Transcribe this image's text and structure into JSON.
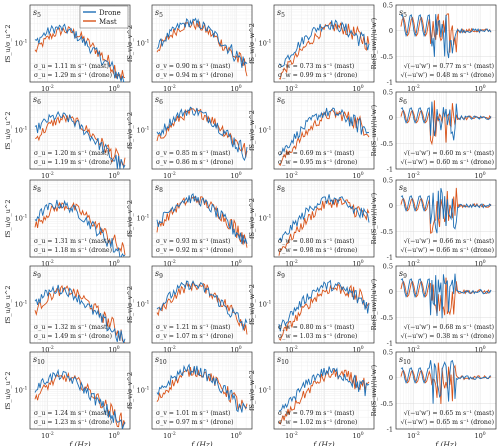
{
  "chart_data": {
    "type": "line",
    "legend": {
      "entries": [
        "Drone",
        "Mast"
      ],
      "placement": "top-right of first panel"
    },
    "colors": {
      "drone": "#1f6fb5",
      "mast": "#d9541a"
    },
    "grid": true,
    "x_axis": {
      "label": "f (Hz)",
      "scale": "log",
      "range": [
        0.003,
        3
      ],
      "tick_labels": [
        "10^{-2}",
        "10^{0}"
      ]
    },
    "column_ylabels": [
      "fS_u/σ_u^2",
      "fS_v/σ_v^2",
      "fS_w/σ_w^2",
      "Re(S_uw)/⟨u'w'⟩"
    ],
    "y_axis_log": {
      "scale": "log",
      "range": [
        0.01,
        0.9
      ],
      "tick_labels": [
        "10^{-1}"
      ]
    },
    "y_axis_cospectrum": {
      "scale": "linear",
      "range": [
        -1.0,
        0.5
      ],
      "tick_labels": [
        "-1",
        "-0.5",
        "0",
        "0.5"
      ]
    },
    "annotation_units": "m s^{-1}",
    "row_subscripts": [
      "5",
      "6",
      "8",
      "9",
      "10"
    ],
    "panels": [
      [
        {
          "col": 0,
          "label": "s5",
          "lines": [
            "σ_u = 1.11 m s⁻¹ (mast)",
            "σ_u = 1.29 m s⁻¹ (drone)"
          ],
          "drone_peak_x": 0.02,
          "drone_peak_y": 0.32,
          "mast_peak_x": 0.03,
          "mast_peak_y": 0.28
        },
        {
          "col": 1,
          "label": "s5",
          "lines": [
            "σ_v = 0.90 m s⁻¹ (mast)",
            "σ_v = 0.94 m s⁻¹ (drone)"
          ],
          "drone_peak_x": 0.04,
          "drone_peak_y": 0.45,
          "mast_peak_x": 0.04,
          "mast_peak_y": 0.4
        },
        {
          "col": 2,
          "label": "s5",
          "lines": [
            "σ_w = 0.73 m s⁻¹ (mast)",
            "σ_w = 0.99 m s⁻¹ (drone)"
          ],
          "drone_peak_x": 0.1,
          "drone_peak_y": 0.35,
          "mast_peak_x": 0.15,
          "mast_peak_y": 0.3
        },
        {
          "col": 3,
          "label": "s5",
          "lines": [
            "√(−u'w') = 0.77 m s⁻¹ (mast)",
            "√(−u'w') = 0.48 m s⁻¹ (drone)"
          ],
          "drone_peak_x": 0.01,
          "drone_peak_y": 0.35,
          "mast_peak_x": 0.02,
          "mast_peak_y": 0.3
        }
      ],
      [
        {
          "col": 0,
          "label": "s6",
          "lines": [
            "σ_u = 1.20 m s⁻¹ (mast)",
            "σ_u = 1.19 m s⁻¹ (drone)"
          ],
          "drone_peak_x": 0.02,
          "drone_peak_y": 0.3,
          "mast_peak_x": 0.03,
          "mast_peak_y": 0.26
        },
        {
          "col": 1,
          "label": "s6",
          "lines": [
            "σ_v = 0.85 m s⁻¹ (mast)",
            "σ_v = 0.86 m s⁻¹ (drone)"
          ],
          "drone_peak_x": 0.04,
          "drone_peak_y": 0.42,
          "mast_peak_x": 0.05,
          "mast_peak_y": 0.38
        },
        {
          "col": 2,
          "label": "s6",
          "lines": [
            "σ_w = 0.69 m s⁻¹ (mast)",
            "σ_w = 0.95 m s⁻¹ (drone)"
          ],
          "drone_peak_x": 0.1,
          "drone_peak_y": 0.33,
          "mast_peak_x": 0.15,
          "mast_peak_y": 0.3
        },
        {
          "col": 3,
          "label": "s6",
          "lines": [
            "√(−u'w') = 0.60 m s⁻¹ (mast)",
            "√(−u'w') = 0.60 m s⁻¹ (drone)"
          ],
          "drone_peak_x": 0.01,
          "drone_peak_y": 0.25,
          "mast_peak_x": 0.02,
          "mast_peak_y": 0.2
        }
      ],
      [
        {
          "col": 0,
          "label": "s8",
          "lines": [
            "σ_u = 1.31 m s⁻¹ (mast)",
            "σ_u = 1.18 m s⁻¹ (drone)"
          ],
          "drone_peak_x": 0.02,
          "drone_peak_y": 0.3,
          "mast_peak_x": 0.03,
          "mast_peak_y": 0.28
        },
        {
          "col": 1,
          "label": "s8",
          "lines": [
            "σ_v = 0.93 m s⁻¹ (mast)",
            "σ_v = 0.92 m s⁻¹ (drone)"
          ],
          "drone_peak_x": 0.04,
          "drone_peak_y": 0.42,
          "mast_peak_x": 0.05,
          "mast_peak_y": 0.4
        },
        {
          "col": 2,
          "label": "s8",
          "lines": [
            "σ_w = 0.80 m s⁻¹ (mast)",
            "σ_w = 0.98 m s⁻¹ (drone)"
          ],
          "drone_peak_x": 0.1,
          "drone_peak_y": 0.35,
          "mast_peak_x": 0.15,
          "mast_peak_y": 0.3
        },
        {
          "col": 3,
          "label": "s8",
          "lines": [
            "√(−u'w') = 0.66 m s⁻¹ (mast)",
            "√(−u'w') = 0.66 m s⁻¹ (drone)"
          ],
          "drone_peak_x": 0.01,
          "drone_peak_y": 0.25,
          "mast_peak_x": 0.02,
          "mast_peak_y": 0.2
        }
      ],
      [
        {
          "col": 0,
          "label": "s9",
          "lines": [
            "σ_u = 1.32 m s⁻¹ (mast)",
            "σ_u = 1.49 m s⁻¹ (drone)"
          ],
          "drone_peak_x": 0.02,
          "drone_peak_y": 0.32,
          "mast_peak_x": 0.03,
          "mast_peak_y": 0.3
        },
        {
          "col": 1,
          "label": "s9",
          "lines": [
            "σ_v = 1.21 m s⁻¹ (mast)",
            "σ_v = 1.07 m s⁻¹ (drone)"
          ],
          "drone_peak_x": 0.04,
          "drone_peak_y": 0.42,
          "mast_peak_x": 0.05,
          "mast_peak_y": 0.4
        },
        {
          "col": 2,
          "label": "s9",
          "lines": [
            "σ_w = 0.80 m s⁻¹ (mast)",
            "σ_w = 1.03 m s⁻¹ (drone)"
          ],
          "drone_peak_x": 0.1,
          "drone_peak_y": 0.35,
          "mast_peak_x": 0.15,
          "mast_peak_y": 0.3
        },
        {
          "col": 3,
          "label": "s9",
          "lines": [
            "√(−u'w') = 0.68 m s⁻¹ (mast)",
            "√(−u'w') = 0.38 m s⁻¹ (drone)"
          ],
          "drone_peak_x": 0.01,
          "drone_peak_y": 0.3,
          "mast_peak_x": 0.02,
          "mast_peak_y": 0.25
        }
      ],
      [
        {
          "col": 0,
          "label": "s10",
          "lines": [
            "σ_u = 1.24 m s⁻¹ (mast)",
            "σ_u = 1.23 m s⁻¹ (drone)"
          ],
          "drone_peak_x": 0.02,
          "drone_peak_y": 0.32,
          "mast_peak_x": 0.03,
          "mast_peak_y": 0.28
        },
        {
          "col": 1,
          "label": "s10",
          "lines": [
            "σ_v = 1.01 m s⁻¹ (mast)",
            "σ_v = 0.97 m s⁻¹ (drone)"
          ],
          "drone_peak_x": 0.04,
          "drone_peak_y": 0.45,
          "mast_peak_x": 0.05,
          "mast_peak_y": 0.4
        },
        {
          "col": 2,
          "label": "s10",
          "lines": [
            "σ_w = 0.79 m s⁻¹ (mast)",
            "σ_w = 1.02 m s⁻¹ (drone)"
          ],
          "drone_peak_x": 0.1,
          "drone_peak_y": 0.35,
          "mast_peak_x": 0.15,
          "mast_peak_y": 0.3
        },
        {
          "col": 3,
          "label": "s10",
          "lines": [
            "√(−u'w') = 0.65 m s⁻¹ (mast)",
            "√(−u'w') = 0.65 m s⁻¹ (drone)"
          ],
          "drone_peak_x": 0.01,
          "drone_peak_y": 0.25,
          "mast_peak_x": 0.02,
          "mast_peak_y": 0.2
        }
      ]
    ]
  }
}
